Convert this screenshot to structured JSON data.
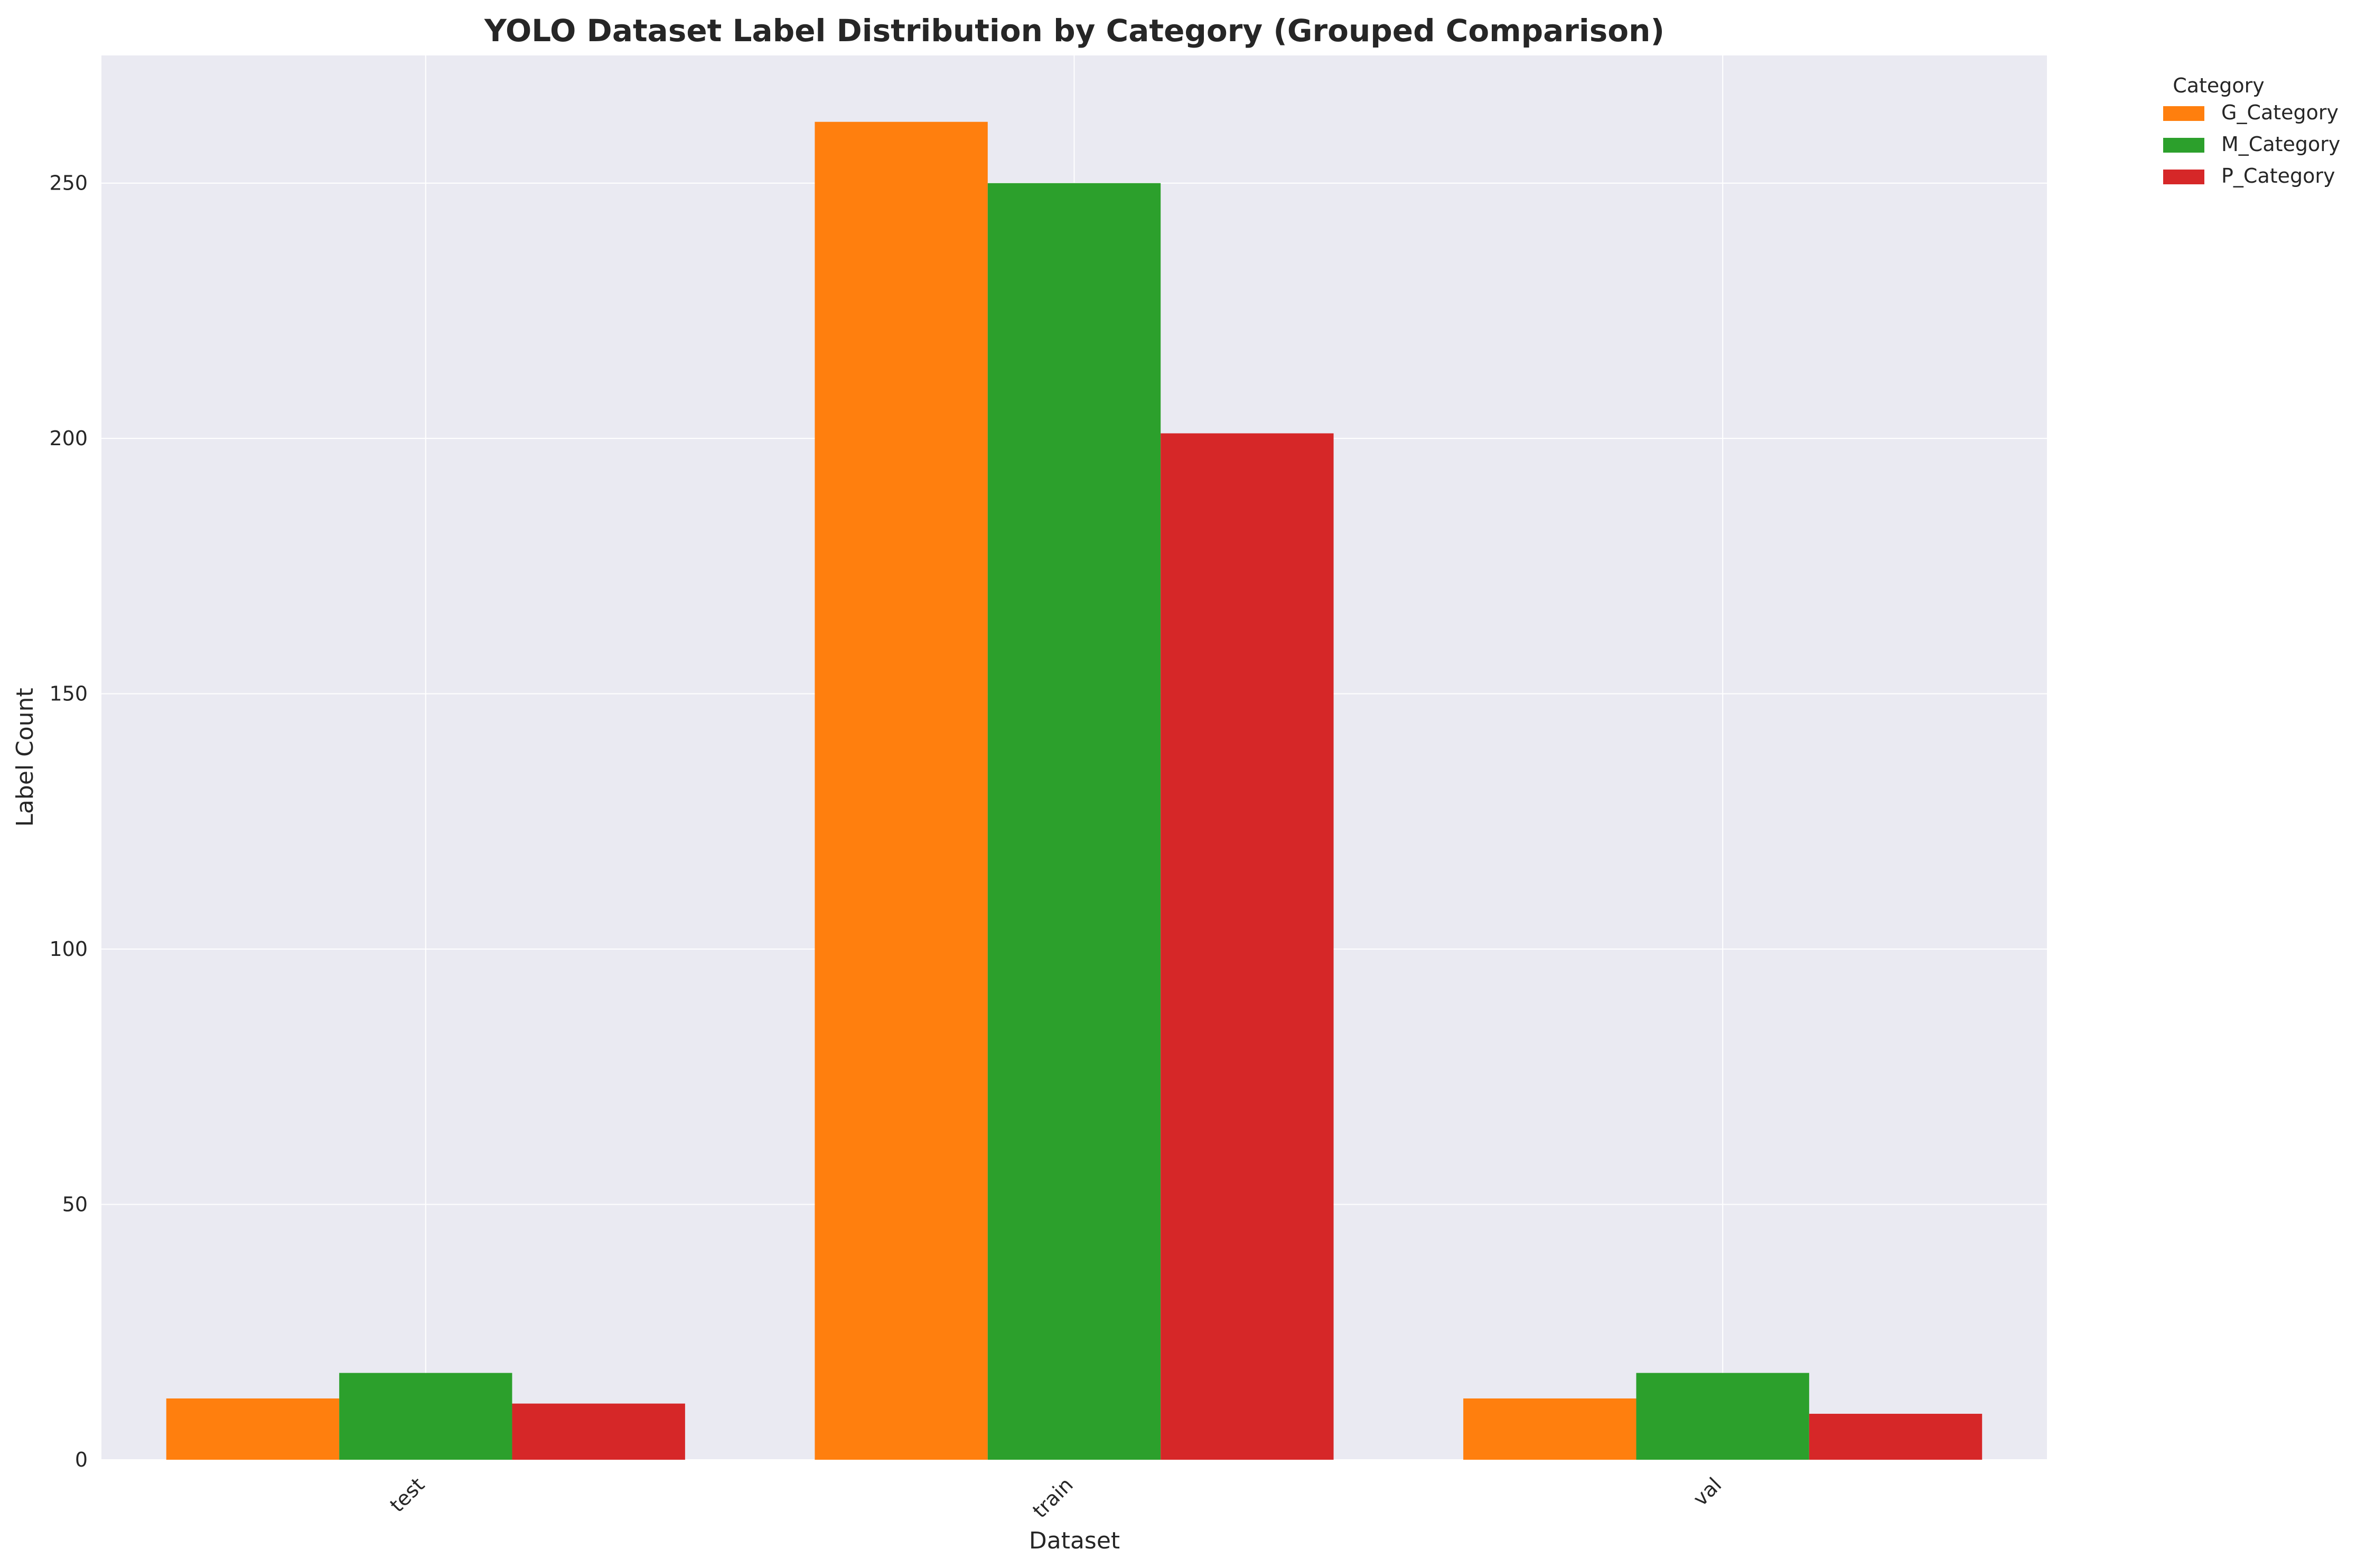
{
  "chart_data": {
    "type": "bar",
    "title": "YOLO Dataset Label Distribution by Category (Grouped Comparison)",
    "xlabel": "Dataset",
    "ylabel": "Label Count",
    "categories": [
      "test",
      "train",
      "val"
    ],
    "series": [
      {
        "name": "G_Category",
        "color": "#ff7f0e",
        "values": [
          12,
          262,
          12
        ]
      },
      {
        "name": "M_Category",
        "color": "#2ca02c",
        "values": [
          17,
          250,
          17
        ]
      },
      {
        "name": "P_Category",
        "color": "#d62728",
        "values": [
          11,
          201,
          9
        ]
      }
    ],
    "ylim": [
      0,
      275
    ],
    "yticks": [
      0,
      50,
      100,
      150,
      200,
      250
    ],
    "grid": true,
    "legend": {
      "title": "Category",
      "placement": "outside top-right"
    },
    "colors": {
      "plot_background": "#eaeaf2",
      "grid": "#ffffff"
    }
  }
}
